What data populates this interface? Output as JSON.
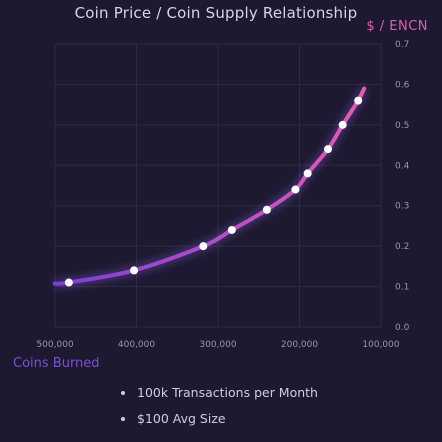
{
  "chart_data": {
    "type": "line",
    "title": "Coin Price / Coin Supply Relationship",
    "ylabel": "$ / ENCN",
    "xlabel": "Coins Burned",
    "x_reversed": true,
    "xlim": [
      500000,
      100000
    ],
    "ylim": [
      0,
      0.7
    ],
    "x_ticks": [
      "500,000",
      "400,000",
      "300,000",
      "200,000",
      "100,000"
    ],
    "y_ticks": [
      "0.0",
      "0.1",
      "0.2",
      "0.3",
      "0.4",
      "0.5",
      "0.6",
      "0.7"
    ],
    "grid": true,
    "y_axis_side": "right",
    "series": [
      {
        "x": [
          483000,
          403000,
          318000,
          283000,
          240000,
          205000,
          190000,
          165000,
          147000,
          128000
        ],
        "values": [
          0.11,
          0.14,
          0.2,
          0.24,
          0.29,
          0.34,
          0.38,
          0.44,
          0.5,
          0.56
        ]
      }
    ],
    "colors": {
      "line_start": "#7b3fd8",
      "line_end": "#e25db0",
      "marker": "#ffffff"
    }
  },
  "notes": [
    "100k Transactions per Month",
    "$100 Avg Size"
  ]
}
